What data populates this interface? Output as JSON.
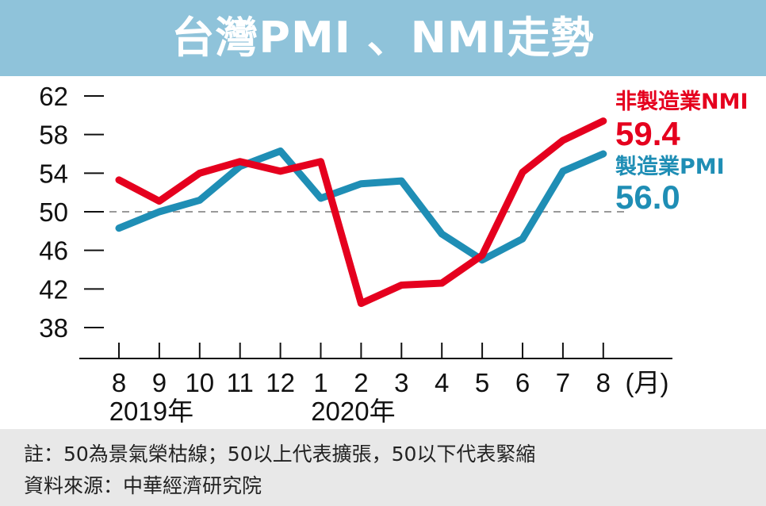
{
  "title": "台灣PMI 、NMI走勢",
  "chart_data": {
    "type": "line",
    "title": "台灣PMI 、NMI走勢",
    "categories": [
      "8",
      "9",
      "10",
      "11",
      "12",
      "1",
      "2",
      "3",
      "4",
      "5",
      "6",
      "7",
      "8"
    ],
    "x_unit": "(月)",
    "year_labels": [
      {
        "label": "2019年",
        "index": 1
      },
      {
        "label": "2020年",
        "index": 6
      }
    ],
    "y_ticks": [
      62,
      58,
      54,
      50,
      46,
      42,
      38
    ],
    "ylim": [
      38,
      62
    ],
    "reference_line": 50,
    "series": [
      {
        "name": "非製造業NMI",
        "latest_label": "59.4",
        "color": "#e5001e",
        "values": [
          53.3,
          51.1,
          54.0,
          55.2,
          54.2,
          55.2,
          40.5,
          42.4,
          42.6,
          45.5,
          54.1,
          57.4,
          59.4
        ]
      },
      {
        "name": "製造業PMI",
        "latest_label": "56.0",
        "color": "#1f8eb5",
        "values": [
          48.3,
          50.0,
          51.2,
          54.7,
          56.3,
          51.4,
          52.9,
          53.2,
          47.7,
          45.0,
          47.2,
          54.2,
          56.0
        ]
      }
    ]
  },
  "footnote": {
    "note": "註：50為景氣榮枯線；50以上代表擴張，50以下代表緊縮",
    "source": "資料來源：中華經濟研究院"
  }
}
